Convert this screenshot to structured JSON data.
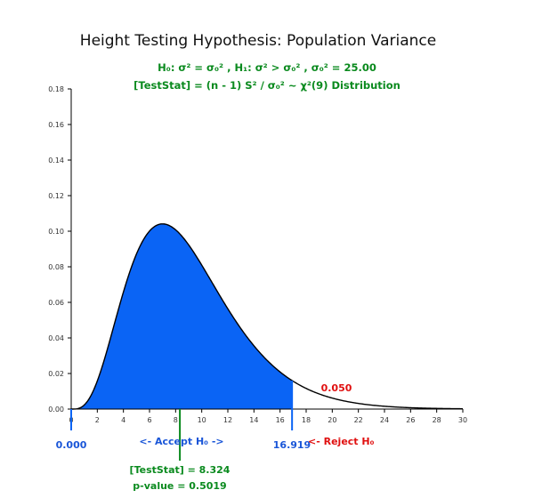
{
  "title": "Height Testing Hypothesis: Population Variance",
  "hypothesis_line": "H₀: σ² = σ₀² , H₁: σ² > σ₀² , σ₀² = 25.00",
  "statistic_line": "[TestStat] = (n - 1) S² / σ₀² ~ χ²(9) Distribution",
  "labels": {
    "left_bound": "0.000",
    "accept": "<- Accept H₀ ->",
    "critical": "16.919",
    "reject": "<- Reject H₀",
    "alpha": "0.050",
    "test_stat": "[TestStat] = 8.324",
    "p_value": "p-value = 0.5019"
  },
  "colors": {
    "accept_fill": "#0a64f5",
    "curve": "#000000",
    "blue_text": "#1a56d8",
    "red_text": "#e01010",
    "green_text": "#0a8a1e"
  },
  "chart_data": {
    "type": "area",
    "distribution": "chi-square",
    "df": 9,
    "xlim": [
      0,
      30
    ],
    "ylim": [
      0,
      0.18
    ],
    "x_ticks": [
      "0",
      "2",
      "4",
      "6",
      "8",
      "10",
      "12",
      "14",
      "16",
      "18",
      "20",
      "22",
      "24",
      "26",
      "28",
      "30"
    ],
    "y_ticks": [
      "0.00",
      "0.02",
      "0.04",
      "0.06",
      "0.08",
      "0.10",
      "0.12",
      "0.14",
      "0.16",
      "0.18"
    ],
    "accept_region": [
      0,
      16.919
    ],
    "critical_value": 16.919,
    "alpha": 0.05,
    "test_statistic": 8.324,
    "p_value": 0.5019
  }
}
